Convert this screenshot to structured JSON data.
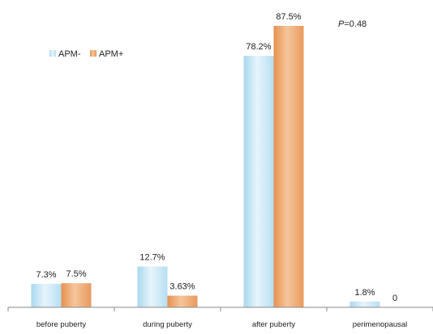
{
  "chart_data": {
    "type": "bar",
    "categories": [
      "before puberty",
      "during puberty",
      "after puberty",
      "perimenopausal"
    ],
    "series": [
      {
        "name": "APM-",
        "values": [
          7.3,
          12.7,
          78.2,
          1.8
        ],
        "labels": [
          "7.3%",
          "12.7%",
          "78.2%",
          "1.8%"
        ],
        "color": "#bfe3f4"
      },
      {
        "name": "APM+",
        "values": [
          7.5,
          3.63,
          87.5,
          0
        ],
        "labels": [
          "7.5%",
          "3.63%",
          "87.5%",
          "0"
        ],
        "color": "#eea068"
      }
    ],
    "annotation": {
      "italic": "P",
      "text": "=0.48"
    },
    "ylim": [
      0,
      87.5
    ],
    "grid": false,
    "legend_position": "top-left"
  }
}
